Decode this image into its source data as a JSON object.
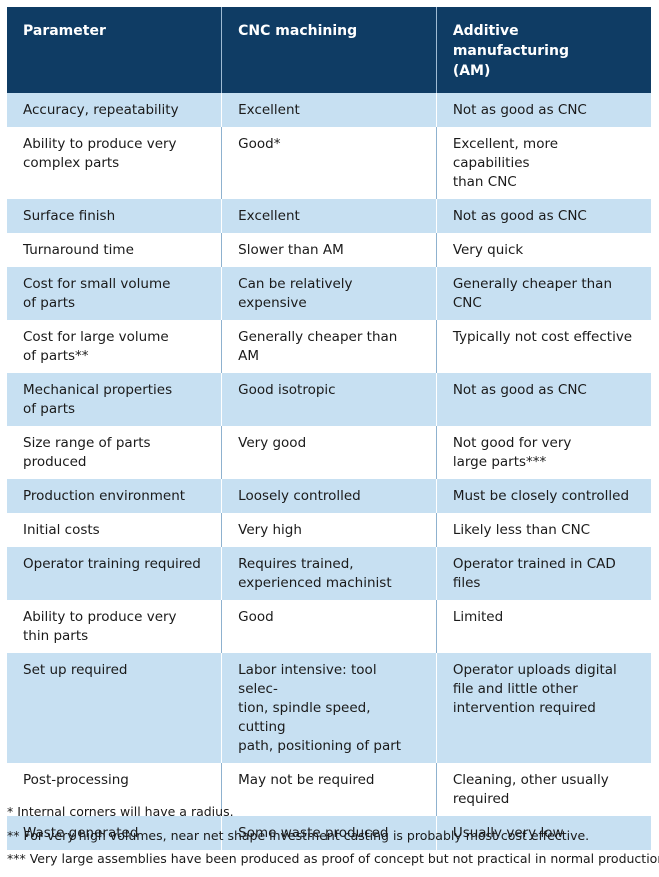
{
  "table": {
    "header": [
      "Parameter",
      "CNC machining",
      "Additive manufacturing\n(AM)"
    ],
    "rows": [
      [
        "Accuracy, repeatability",
        "Excellent",
        "Not as good as CNC"
      ],
      [
        "Ability to produce very\ncomplex parts",
        "Good*",
        "Excellent, more capabilities\nthan CNC"
      ],
      [
        "Surface finish",
        "Excellent",
        "Not as good as CNC"
      ],
      [
        "Turnaround time",
        "Slower than AM",
        "Very quick"
      ],
      [
        "Cost for small volume\nof parts",
        "Can be relatively expensive",
        "Generally cheaper than CNC"
      ],
      [
        "Cost for large volume\nof parts**",
        "Generally cheaper than AM",
        "Typically not cost effective"
      ],
      [
        "Mechanical properties\nof parts",
        "Good isotropic",
        "Not as good as CNC"
      ],
      [
        "Size range of parts produced",
        "Very good",
        "Not good for very\nlarge parts***"
      ],
      [
        "Production environment",
        "Loosely controlled",
        "Must be closely controlled"
      ],
      [
        "Initial costs",
        "Very high",
        "Likely less than CNC"
      ],
      [
        "Operator training required",
        "Requires trained,\nexperienced machinist",
        "Operator trained in CAD files"
      ],
      [
        "Ability to produce very\nthin parts",
        "Good",
        "Limited"
      ],
      [
        "Set up required",
        "Labor intensive: tool selec-\ntion, spindle speed, cutting\npath, positioning of part",
        "Operator uploads digital\nfile and little other\nintervention required"
      ],
      [
        "Post-processing",
        "May not be required",
        "Cleaning, other usually\nrequired"
      ],
      [
        "Waste generated",
        "Some waste produced",
        "Usually very low"
      ]
    ]
  },
  "footnotes": [
    "* Internal corners will have a radius.",
    "** For very high volumes, near net shape investment casting is probably most cost effective.",
    "*** Very large assemblies have been produced as proof of concept but not practical in normal production."
  ]
}
